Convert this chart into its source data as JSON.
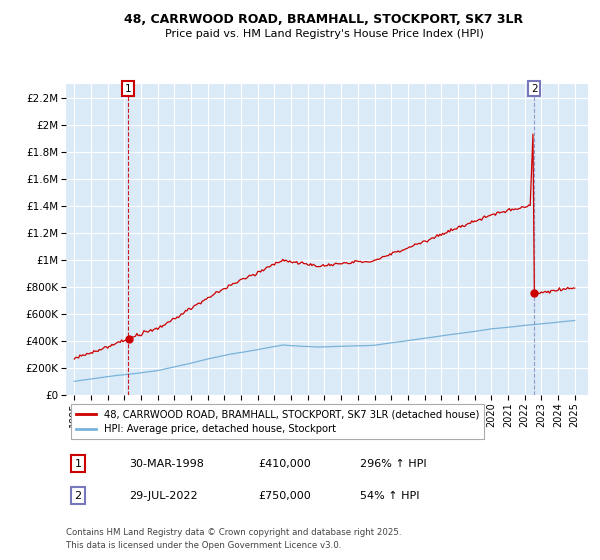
{
  "title_line1": "48, CARRWOOD ROAD, BRAMHALL, STOCKPORT, SK7 3LR",
  "title_line2": "Price paid vs. HM Land Registry's House Price Index (HPI)",
  "fig_bg_color": "#ffffff",
  "plot_bg_color": "#daeaf7",
  "grid_color": "#ffffff",
  "red_line_color": "#cc0000",
  "blue_line_color": "#7ab3d9",
  "marker_color": "#cc0000",
  "vline1_color": "#cc0000",
  "vline2_color": "#7777bb",
  "sale1_year": 1998.24,
  "sale1_price": 410000,
  "sale2_year": 2022.57,
  "sale2_price": 750000,
  "ylim_min": 0,
  "ylim_max": 2300000,
  "xlim_min": 1994.5,
  "xlim_max": 2025.8,
  "ytick_values": [
    0,
    200000,
    400000,
    600000,
    800000,
    1000000,
    1200000,
    1400000,
    1600000,
    1800000,
    2000000,
    2200000
  ],
  "ytick_labels": [
    "£0",
    "£200K",
    "£400K",
    "£600K",
    "£800K",
    "£1M",
    "£1.2M",
    "£1.4M",
    "£1.6M",
    "£1.8M",
    "£2M",
    "£2.2M"
  ],
  "xtick_years": [
    1995,
    1996,
    1997,
    1998,
    1999,
    2000,
    2001,
    2002,
    2003,
    2004,
    2005,
    2006,
    2007,
    2008,
    2009,
    2010,
    2011,
    2012,
    2013,
    2014,
    2015,
    2016,
    2017,
    2018,
    2019,
    2020,
    2021,
    2022,
    2023,
    2024,
    2025
  ],
  "legend_label_red": "48, CARRWOOD ROAD, BRAMHALL, STOCKPORT, SK7 3LR (detached house)",
  "legend_label_blue": "HPI: Average price, detached house, Stockport",
  "annotation1_label": "1",
  "annotation1_date": "30-MAR-1998",
  "annotation1_price": "£410,000",
  "annotation1_hpi": "296% ↑ HPI",
  "annotation2_label": "2",
  "annotation2_date": "29-JUL-2022",
  "annotation2_price": "£750,000",
  "annotation2_hpi": "54% ↑ HPI",
  "footer_text": "Contains HM Land Registry data © Crown copyright and database right 2025.\nThis data is licensed under the Open Government Licence v3.0."
}
